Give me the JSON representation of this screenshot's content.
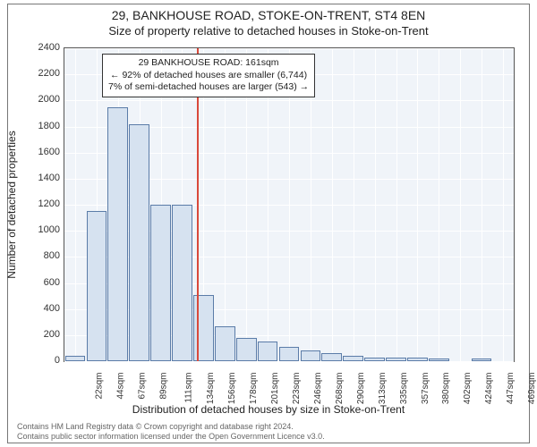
{
  "header": {
    "line1": "29, BANKHOUSE ROAD, STOKE-ON-TRENT, ST4 8EN",
    "line2": "Size of property relative to detached houses in Stoke-on-Trent"
  },
  "chart": {
    "type": "histogram",
    "background_color": "#f0f4f9",
    "grid_color": "#ffffff",
    "bar_fill": "#d6e2f0",
    "bar_border": "#5b7ca8",
    "refline_color": "#d9493b",
    "y": {
      "label": "Number of detached properties",
      "min": 0,
      "max": 2400,
      "step": 200,
      "ticks": [
        0,
        200,
        400,
        600,
        800,
        1000,
        1200,
        1400,
        1600,
        1800,
        2000,
        2200,
        2400
      ],
      "fontsize": 11
    },
    "x": {
      "label": "Distribution of detached houses by size in Stoke-on-Trent",
      "ticks": [
        "22sqm",
        "44sqm",
        "67sqm",
        "89sqm",
        "111sqm",
        "134sqm",
        "156sqm",
        "178sqm",
        "201sqm",
        "223sqm",
        "246sqm",
        "268sqm",
        "290sqm",
        "313sqm",
        "335sqm",
        "357sqm",
        "380sqm",
        "402sqm",
        "424sqm",
        "447sqm",
        "469sqm"
      ],
      "fontsize": 10
    },
    "bars": [
      40,
      1150,
      1950,
      1820,
      1200,
      1200,
      510,
      270,
      180,
      150,
      110,
      80,
      60,
      40,
      30,
      30,
      30,
      20,
      0,
      20,
      0
    ],
    "refline_index": 6.2,
    "annotation": {
      "line1": "29 BANKHOUSE ROAD: 161sqm",
      "line2": "← 92% of detached houses are smaller (6,744)",
      "line3": "7% of semi-detached houses are larger (543) →"
    }
  },
  "footer": {
    "line1": "Contains HM Land Registry data © Crown copyright and database right 2024.",
    "line2": "Contains public sector information licensed under the Open Government Licence v3.0."
  }
}
